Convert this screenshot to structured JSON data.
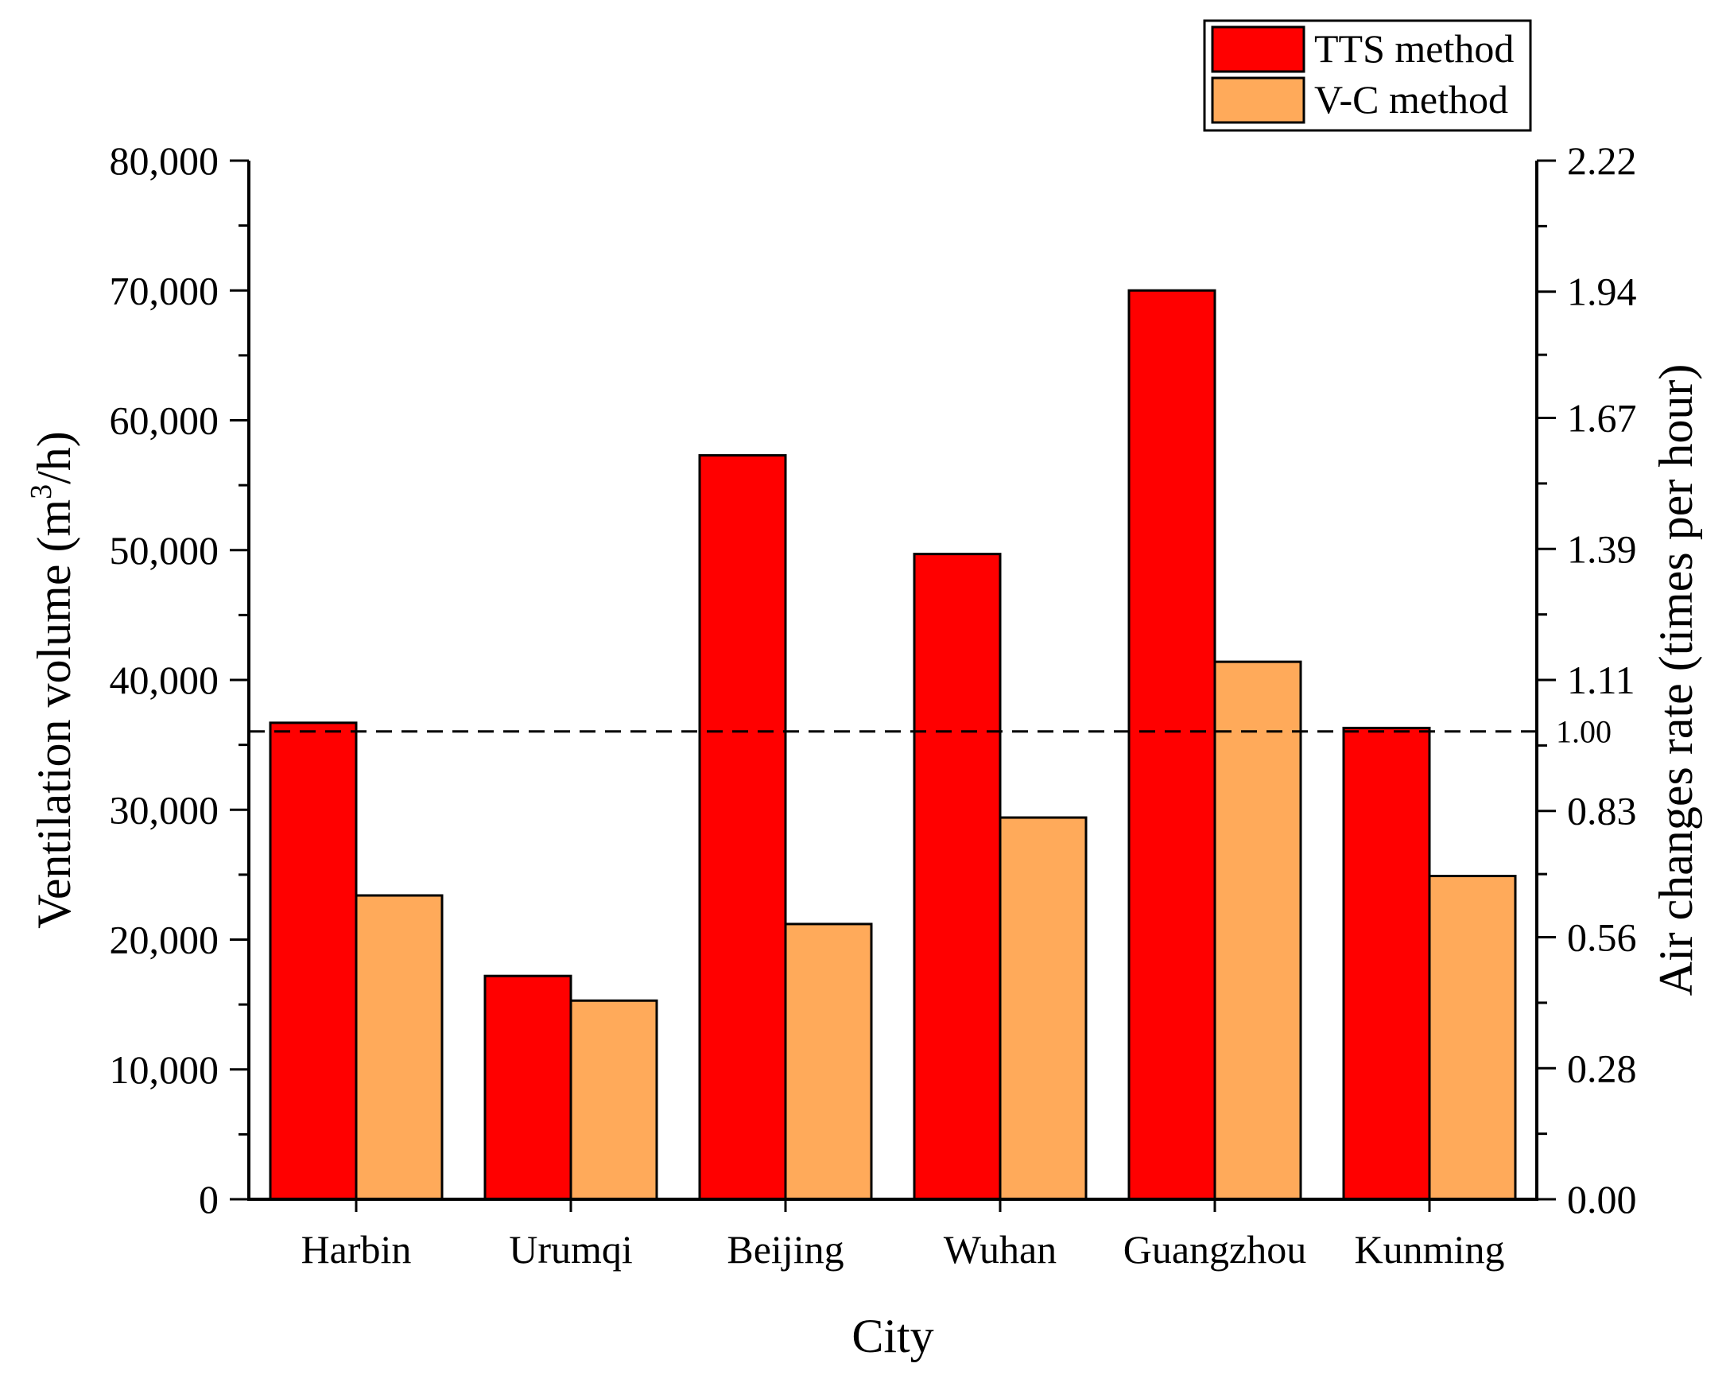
{
  "chart_data": {
    "type": "bar",
    "title": "",
    "xlabel": "City",
    "ylabel": {
      "pre": "Ventilation volume (m",
      "sup": "3",
      "post": "/h)"
    },
    "y2label": "Air changes rate (times per hour)",
    "categories": [
      "Harbin",
      "Urumqi",
      "Beijing",
      "Wuhan",
      "Guangzhou",
      "Kunming"
    ],
    "series": [
      {
        "name": "TTS method",
        "color": "#ff0000",
        "values": [
          36700,
          17200,
          57300,
          49700,
          70000,
          36300
        ]
      },
      {
        "name": "V-C method",
        "color": "#ffaa5a",
        "values": [
          23400,
          15300,
          21200,
          29400,
          41400,
          24900
        ]
      }
    ],
    "ylim": [
      0,
      80000
    ],
    "yticks": [
      0,
      10000,
      20000,
      30000,
      40000,
      50000,
      60000,
      70000,
      80000
    ],
    "ytick_labels": [
      "0",
      "10,000",
      "20,000",
      "30,000",
      "40,000",
      "50,000",
      "60,000",
      "70,000",
      "80,000"
    ],
    "y2lim": [
      0,
      2.22
    ],
    "y2ticks": [
      0,
      0.28,
      0.56,
      0.83,
      1.11,
      1.39,
      1.67,
      1.94,
      2.22
    ],
    "y2tick_labels": [
      "0.00",
      "0.28",
      "0.56",
      "0.83",
      "1.11",
      "1.39",
      "1.67",
      "1.94",
      "2.22"
    ],
    "reference_line": {
      "y2": 1.0,
      "label": "1.00",
      "style": "dashed"
    },
    "legend_position": "top-right"
  }
}
